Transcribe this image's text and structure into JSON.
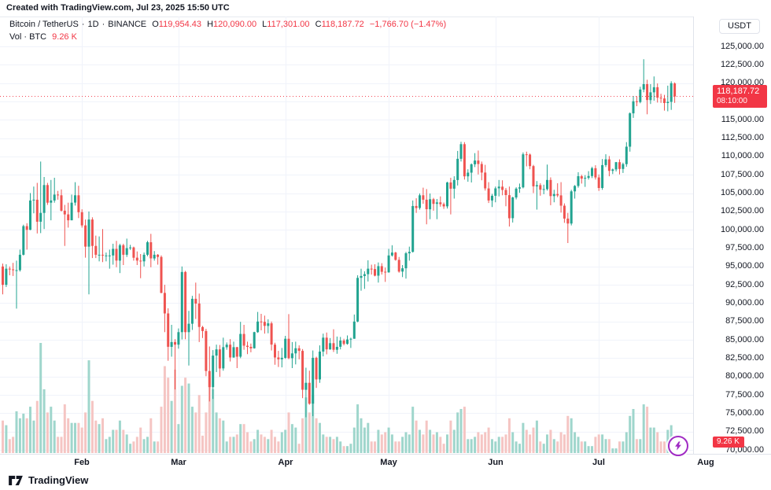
{
  "attribution": "Created with TradingView.com, Jul 23, 2025 15:50 UTC",
  "legend": {
    "symbol": "Bitcoin / TetherUS",
    "separator": "·",
    "interval": "1D",
    "exchange": "BINANCE",
    "ohlc": [
      {
        "key": "O",
        "value": "119,954.43"
      },
      {
        "key": "H",
        "value": "120,090.00"
      },
      {
        "key": "L",
        "value": "117,301.00"
      },
      {
        "key": "C",
        "value": "118,187.72"
      }
    ],
    "change": "−1,766.70 (−1.47%)",
    "volume_row": {
      "label": "Vol · BTC",
      "value": "9.26 K"
    }
  },
  "price_scale": {
    "currency": "USDT",
    "tick_min": 70000,
    "tick_max": 125000,
    "tick_step": 2500,
    "last_price_label": "118,187.72",
    "last_time_label": "08:10:00",
    "volume_badge": "9.26 K"
  },
  "time_scale": {
    "months": [
      {
        "label": "Feb",
        "index": 23
      },
      {
        "label": "Mar",
        "index": 51
      },
      {
        "label": "Apr",
        "index": 82
      },
      {
        "label": "May",
        "index": 112
      },
      {
        "label": "Jun",
        "index": 143
      },
      {
        "label": "Jul",
        "index": 173
      },
      {
        "label": "Aug",
        "index": 204
      }
    ]
  },
  "footer": {
    "brand": "TradingView"
  },
  "colors": {
    "up": "#21a390",
    "down": "#ef5350",
    "vol_up": "#9fd6cc",
    "vol_down": "#f5c5c3",
    "accent_red": "#f23645",
    "grid": "#f0f3fa",
    "border": "#e0e3eb",
    "text": "#131722",
    "boost_purple": "#a02bc4"
  },
  "chart_data": {
    "type": "candlestick",
    "title": "Bitcoin / TetherUS · 1D · BINANCE",
    "ylabel": "Price (USDT)",
    "volume_unit": "K BTC",
    "x_axis_months": [
      "Feb",
      "Mar",
      "Apr",
      "May",
      "Jun",
      "Jul",
      "Aug"
    ],
    "price_axis": {
      "min": 68500,
      "max": 126500,
      "tick_step": 2500
    },
    "last_price": 118187.72,
    "volume_scale_max": 95,
    "candles_format": [
      "open",
      "high",
      "low",
      "close",
      "volume_k_btc"
    ],
    "candles": [
      [
        95000,
        95400,
        91200,
        92500,
        28
      ],
      [
        92500,
        95300,
        92200,
        94700,
        24
      ],
      [
        94700,
        95000,
        93800,
        94600,
        12
      ],
      [
        94600,
        95500,
        93700,
        94500,
        14
      ],
      [
        94500,
        95800,
        89250,
        94500,
        36
      ],
      [
        94500,
        97300,
        94300,
        96600,
        30
      ],
      [
        96600,
        100700,
        96500,
        100500,
        34
      ],
      [
        100500,
        100900,
        97300,
        100000,
        30
      ],
      [
        100000,
        105000,
        99950,
        104000,
        40
      ],
      [
        104000,
        105900,
        102250,
        104100,
        28
      ],
      [
        104100,
        106400,
        99500,
        101100,
        45
      ],
      [
        101100,
        109300,
        99550,
        102300,
        95
      ],
      [
        102300,
        107200,
        100100,
        106100,
        55
      ],
      [
        106100,
        106400,
        103400,
        103700,
        35
      ],
      [
        103700,
        106800,
        101300,
        104000,
        40
      ],
      [
        104000,
        107100,
        103700,
        104800,
        28
      ],
      [
        104800,
        105300,
        104100,
        104700,
        14
      ],
      [
        104700,
        105500,
        102500,
        102600,
        14
      ],
      [
        102600,
        103400,
        97800,
        102100,
        42
      ],
      [
        102100,
        103700,
        100300,
        101300,
        30
      ],
      [
        101300,
        104800,
        101300,
        103700,
        26
      ],
      [
        103700,
        106500,
        103300,
        104700,
        26
      ],
      [
        104700,
        106000,
        101600,
        102400,
        26
      ],
      [
        102400,
        102800,
        100300,
        100600,
        22
      ],
      [
        100600,
        101400,
        96200,
        97700,
        35
      ],
      [
        97700,
        102500,
        91200,
        101400,
        80
      ],
      [
        101400,
        101700,
        96150,
        97800,
        45
      ],
      [
        97800,
        99200,
        96150,
        96600,
        28
      ],
      [
        96600,
        99100,
        95700,
        96600,
        25
      ],
      [
        96600,
        100100,
        95600,
        96500,
        30
      ],
      [
        96500,
        96900,
        95700,
        96500,
        12
      ],
      [
        96500,
        97300,
        94700,
        96500,
        14
      ],
      [
        96500,
        98100,
        95250,
        97400,
        20
      ],
      [
        97400,
        98500,
        94900,
        95800,
        20
      ],
      [
        95800,
        98100,
        94100,
        97900,
        28
      ],
      [
        97900,
        98100,
        95200,
        96600,
        20
      ],
      [
        96600,
        98800,
        96300,
        97500,
        16
      ],
      [
        97500,
        97950,
        97250,
        97600,
        8
      ],
      [
        97600,
        97700,
        95800,
        96200,
        10
      ],
      [
        96200,
        97050,
        95200,
        95800,
        14
      ],
      [
        95800,
        96700,
        93400,
        95700,
        22
      ],
      [
        95700,
        96900,
        95000,
        96600,
        12
      ],
      [
        96600,
        98500,
        96400,
        98300,
        14
      ],
      [
        98300,
        99450,
        94900,
        96100,
        30
      ],
      [
        96100,
        97100,
        95800,
        96600,
        10
      ],
      [
        96600,
        96700,
        95250,
        96300,
        10
      ],
      [
        96300,
        96500,
        91350,
        91400,
        40
      ],
      [
        91400,
        92500,
        86050,
        88600,
        75
      ],
      [
        88600,
        89300,
        82150,
        84050,
        65
      ],
      [
        84050,
        87050,
        82700,
        84700,
        45
      ],
      [
        84700,
        85100,
        78250,
        84350,
        72
      ],
      [
        84350,
        86550,
        83800,
        86050,
        25
      ],
      [
        86050,
        95000,
        85050,
        94250,
        58
      ],
      [
        94250,
        94400,
        85080,
        86050,
        65
      ],
      [
        86050,
        88950,
        81500,
        87200,
        60
      ],
      [
        87200,
        91000,
        86350,
        90600,
        40
      ],
      [
        90600,
        92800,
        87850,
        89950,
        35
      ],
      [
        89950,
        91300,
        84700,
        86750,
        50
      ],
      [
        86750,
        86900,
        85250,
        86200,
        15
      ],
      [
        86200,
        86500,
        80050,
        80750,
        35
      ],
      [
        80750,
        84100,
        76600,
        78550,
        65
      ],
      [
        78550,
        83600,
        76950,
        82850,
        55
      ],
      [
        82850,
        84350,
        80600,
        83700,
        35
      ],
      [
        83700,
        84300,
        79950,
        81100,
        30
      ],
      [
        81100,
        85300,
        80800,
        84000,
        28
      ],
      [
        84000,
        84650,
        83650,
        84350,
        10
      ],
      [
        84350,
        85100,
        82050,
        82600,
        14
      ],
      [
        82600,
        84750,
        82550,
        84000,
        14
      ],
      [
        84000,
        84050,
        81150,
        82700,
        16
      ],
      [
        82700,
        87450,
        82500,
        85800,
        25
      ],
      [
        85800,
        87050,
        83650,
        84200,
        25
      ],
      [
        84200,
        84750,
        83050,
        84050,
        18
      ],
      [
        84050,
        84500,
        83300,
        83850,
        10
      ],
      [
        83850,
        86100,
        83800,
        86050,
        12
      ],
      [
        86050,
        88800,
        85950,
        87500,
        20
      ],
      [
        87500,
        88550,
        86300,
        87450,
        16
      ],
      [
        87450,
        88300,
        85850,
        86900,
        14
      ],
      [
        86900,
        87800,
        85900,
        87250,
        12
      ],
      [
        87250,
        87500,
        83550,
        84350,
        20
      ],
      [
        84350,
        84600,
        81600,
        82600,
        14
      ],
      [
        82600,
        83500,
        81300,
        82350,
        10
      ],
      [
        82350,
        83900,
        81250,
        82550,
        18
      ],
      [
        82550,
        85550,
        82400,
        85150,
        20
      ],
      [
        85150,
        88500,
        82350,
        82500,
        35
      ],
      [
        82500,
        84700,
        81150,
        83150,
        25
      ],
      [
        83150,
        84750,
        81650,
        83850,
        22
      ],
      [
        83850,
        84250,
        82350,
        83500,
        8
      ],
      [
        83500,
        83750,
        77050,
        78200,
        30
      ],
      [
        78200,
        81200,
        74450,
        79150,
        48
      ],
      [
        79150,
        80800,
        76150,
        76300,
        35
      ],
      [
        76300,
        83550,
        74600,
        82550,
        50
      ],
      [
        82550,
        82700,
        78450,
        79600,
        30
      ],
      [
        79600,
        84250,
        79150,
        83400,
        26
      ],
      [
        83400,
        85850,
        82750,
        85300,
        16
      ],
      [
        85300,
        86000,
        83030,
        83700,
        14
      ],
      [
        83700,
        85250,
        83650,
        84550,
        14
      ],
      [
        84550,
        86450,
        83350,
        83650,
        12
      ],
      [
        83650,
        85450,
        83100,
        84050,
        14
      ],
      [
        84050,
        85400,
        83700,
        84900,
        10
      ],
      [
        84900,
        85150,
        84250,
        84450,
        6
      ],
      [
        84450,
        85600,
        84350,
        85050,
        6
      ],
      [
        85050,
        85300,
        83900,
        85150,
        8
      ],
      [
        85150,
        88450,
        85150,
        87500,
        22
      ],
      [
        87500,
        93800,
        87400,
        93450,
        42
      ],
      [
        93450,
        94700,
        91700,
        93700,
        30
      ],
      [
        93700,
        94350,
        91950,
        93950,
        22
      ],
      [
        93950,
        95850,
        92950,
        94700,
        26
      ],
      [
        94700,
        95250,
        93900,
        94650,
        10
      ],
      [
        94650,
        95300,
        93650,
        93750,
        10
      ],
      [
        93750,
        95550,
        92800,
        95050,
        20
      ],
      [
        95050,
        95450,
        93900,
        94280,
        16
      ],
      [
        94280,
        94850,
        92900,
        94200,
        18
      ],
      [
        94200,
        97400,
        94150,
        96500,
        22
      ],
      [
        96500,
        97900,
        96350,
        96900,
        16
      ],
      [
        96900,
        97000,
        95800,
        95900,
        10
      ],
      [
        95900,
        96300,
        94150,
        94300,
        10
      ],
      [
        94300,
        95200,
        93550,
        94750,
        14
      ],
      [
        94750,
        97000,
        93350,
        96800,
        18
      ],
      [
        96800,
        97700,
        95800,
        97000,
        16
      ],
      [
        97000,
        104000,
        96900,
        103250,
        40
      ],
      [
        103250,
        104300,
        102300,
        102970,
        28
      ],
      [
        102970,
        104950,
        102750,
        104700,
        20
      ],
      [
        104700,
        105750,
        103550,
        104100,
        16
      ],
      [
        104100,
        105550,
        100750,
        102800,
        28
      ],
      [
        102800,
        104950,
        101450,
        104170,
        20
      ],
      [
        104170,
        104350,
        102600,
        103540,
        16
      ],
      [
        103540,
        104200,
        101450,
        103740,
        18
      ],
      [
        103740,
        104550,
        103150,
        103490,
        14
      ],
      [
        103490,
        103720,
        102850,
        103190,
        8
      ],
      [
        103190,
        106550,
        102900,
        106450,
        16
      ],
      [
        106450,
        107100,
        102100,
        105600,
        28
      ],
      [
        105600,
        107300,
        104250,
        106790,
        20
      ],
      [
        106790,
        110750,
        106050,
        109680,
        35
      ],
      [
        109680,
        112000,
        109300,
        111670,
        38
      ],
      [
        111670,
        111950,
        106850,
        107290,
        40
      ],
      [
        107290,
        108250,
        106550,
        107790,
        12
      ],
      [
        107790,
        109050,
        106450,
        108930,
        12
      ],
      [
        108930,
        110450,
        108550,
        109440,
        14
      ],
      [
        109440,
        110800,
        107550,
        108970,
        18
      ],
      [
        108970,
        109300,
        106750,
        107800,
        16
      ],
      [
        107800,
        108850,
        105350,
        105640,
        18
      ],
      [
        105640,
        106500,
        103650,
        104000,
        22
      ],
      [
        104000,
        104900,
        103100,
        104640,
        12
      ],
      [
        104640,
        105900,
        103750,
        105650,
        10
      ],
      [
        105650,
        106800,
        104550,
        105880,
        14
      ],
      [
        105880,
        106750,
        104700,
        105430,
        14
      ],
      [
        105430,
        105700,
        103200,
        104730,
        16
      ],
      [
        104730,
        105900,
        100450,
        101580,
        30
      ],
      [
        101580,
        104500,
        101000,
        104410,
        18
      ],
      [
        104410,
        105800,
        104150,
        105620,
        10
      ],
      [
        105620,
        106300,
        105050,
        105790,
        8
      ],
      [
        105790,
        110550,
        105650,
        110290,
        26
      ],
      [
        110290,
        110650,
        108650,
        110260,
        20
      ],
      [
        110260,
        110400,
        108250,
        108680,
        16
      ],
      [
        108680,
        108850,
        105000,
        105930,
        22
      ],
      [
        105930,
        106650,
        102750,
        106090,
        28
      ],
      [
        106090,
        106350,
        104650,
        105470,
        10
      ],
      [
        105470,
        106150,
        104850,
        105550,
        8
      ],
      [
        105550,
        108900,
        105350,
        106800,
        16
      ],
      [
        106800,
        107150,
        103350,
        104600,
        20
      ],
      [
        104600,
        105450,
        103750,
        104880,
        12
      ],
      [
        104880,
        106350,
        104450,
        104690,
        10
      ],
      [
        104690,
        106500,
        102350,
        103290,
        18
      ],
      [
        103290,
        103600,
        100950,
        101530,
        16
      ],
      [
        101530,
        102300,
        98200,
        100850,
        32
      ],
      [
        100850,
        105450,
        100600,
        105240,
        30
      ],
      [
        105240,
        106100,
        104250,
        105980,
        18
      ],
      [
        105980,
        107850,
        105750,
        107310,
        14
      ],
      [
        107310,
        107500,
        106300,
        106980,
        10
      ],
      [
        106980,
        107450,
        105850,
        107080,
        10
      ],
      [
        107080,
        108000,
        106850,
        107330,
        6
      ],
      [
        107330,
        108600,
        107050,
        108390,
        6
      ],
      [
        108390,
        108800,
        106850,
        107140,
        14
      ],
      [
        107140,
        107550,
        105300,
        105700,
        16
      ],
      [
        105700,
        109650,
        105450,
        108820,
        16
      ],
      [
        108820,
        110300,
        108550,
        109600,
        12
      ],
      [
        109600,
        110050,
        107300,
        108040,
        12
      ],
      [
        108040,
        108350,
        107600,
        108230,
        4
      ],
      [
        108230,
        109250,
        107950,
        109220,
        4
      ],
      [
        109220,
        109600,
        107550,
        108300,
        10
      ],
      [
        108300,
        109150,
        107750,
        108950,
        10
      ],
      [
        108950,
        111950,
        108600,
        111330,
        18
      ],
      [
        111330,
        116000,
        110650,
        115880,
        32
      ],
      [
        115880,
        118250,
        115250,
        117520,
        38
      ],
      [
        117520,
        118200,
        116850,
        117420,
        12
      ],
      [
        117420,
        119500,
        117250,
        119120,
        12
      ],
      [
        119120,
        123250,
        118750,
        119850,
        42
      ],
      [
        119850,
        120450,
        115750,
        117680,
        40
      ],
      [
        117680,
        119850,
        117150,
        118740,
        22
      ],
      [
        118740,
        120900,
        117600,
        119440,
        22
      ],
      [
        119440,
        119950,
        117350,
        118010,
        18
      ],
      [
        118010,
        118550,
        117300,
        117900,
        10
      ],
      [
        117900,
        118400,
        116250,
        117280,
        10
      ],
      [
        117280,
        119650,
        116150,
        117440,
        20
      ],
      [
        117440,
        120250,
        116350,
        119980,
        24
      ],
      [
        119954.43,
        120090,
        117301,
        118187.72,
        9.26
      ]
    ]
  }
}
